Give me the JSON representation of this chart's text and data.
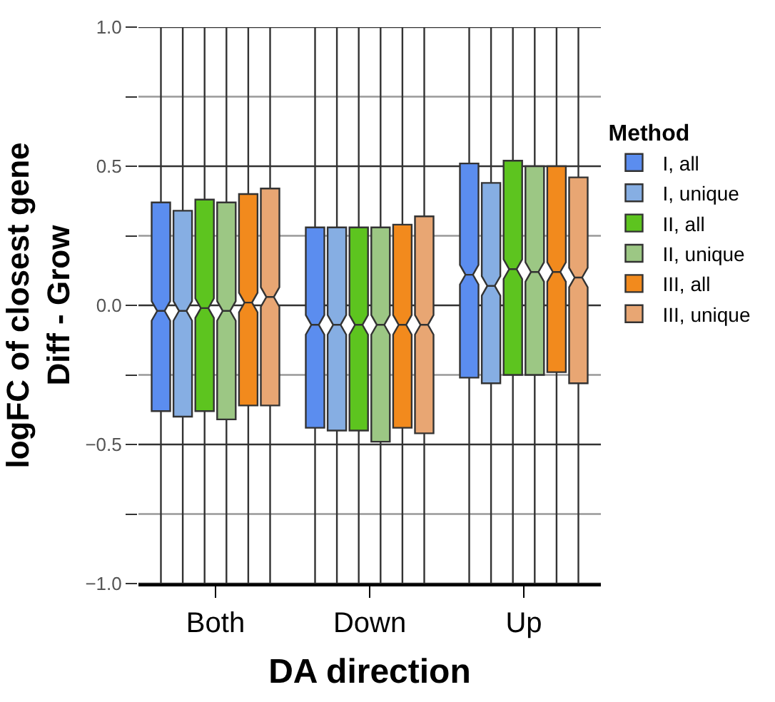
{
  "chart_data": {
    "type": "box",
    "xlabel": "DA direction",
    "ylabel": "logFC of closest gene\nDiff - Grow",
    "legend_title": "Method",
    "categories": [
      "Both",
      "Down",
      "Up"
    ],
    "series": [
      {
        "name": "I, all",
        "color": "#5b8def",
        "boxes": [
          {
            "low": -1.0,
            "q1": -0.38,
            "median": -0.02,
            "q3": 0.37,
            "high": 1.0
          },
          {
            "low": -1.0,
            "q1": -0.44,
            "median": -0.07,
            "q3": 0.28,
            "high": 1.0
          },
          {
            "low": -1.0,
            "q1": -0.26,
            "median": 0.11,
            "q3": 0.51,
            "high": 1.0
          }
        ]
      },
      {
        "name": "I, unique",
        "color": "#86aee3",
        "boxes": [
          {
            "low": -1.0,
            "q1": -0.4,
            "median": -0.02,
            "q3": 0.34,
            "high": 1.0
          },
          {
            "low": -1.0,
            "q1": -0.45,
            "median": -0.07,
            "q3": 0.28,
            "high": 1.0
          },
          {
            "low": -1.0,
            "q1": -0.28,
            "median": 0.07,
            "q3": 0.44,
            "high": 1.0
          }
        ]
      },
      {
        "name": "II, all",
        "color": "#5dc41f",
        "boxes": [
          {
            "low": -1.0,
            "q1": -0.38,
            "median": -0.01,
            "q3": 0.38,
            "high": 1.0
          },
          {
            "low": -1.0,
            "q1": -0.45,
            "median": -0.07,
            "q3": 0.28,
            "high": 1.0
          },
          {
            "low": -1.0,
            "q1": -0.25,
            "median": 0.13,
            "q3": 0.52,
            "high": 1.0
          }
        ]
      },
      {
        "name": "II, unique",
        "color": "#9cc784",
        "boxes": [
          {
            "low": -1.0,
            "q1": -0.41,
            "median": -0.02,
            "q3": 0.37,
            "high": 1.0
          },
          {
            "low": -1.0,
            "q1": -0.49,
            "median": -0.07,
            "q3": 0.28,
            "high": 1.0
          },
          {
            "low": -1.0,
            "q1": -0.25,
            "median": 0.12,
            "q3": 0.5,
            "high": 1.0
          }
        ]
      },
      {
        "name": "III, all",
        "color": "#f28a1d",
        "boxes": [
          {
            "low": -1.0,
            "q1": -0.36,
            "median": 0.01,
            "q3": 0.4,
            "high": 1.0
          },
          {
            "low": -1.0,
            "q1": -0.44,
            "median": -0.07,
            "q3": 0.29,
            "high": 1.0
          },
          {
            "low": -1.0,
            "q1": -0.24,
            "median": 0.12,
            "q3": 0.5,
            "high": 1.0
          }
        ]
      },
      {
        "name": "III, unique",
        "color": "#e8a673",
        "boxes": [
          {
            "low": -1.0,
            "q1": -0.36,
            "median": 0.03,
            "q3": 0.42,
            "high": 1.0
          },
          {
            "low": -1.0,
            "q1": -0.46,
            "median": -0.07,
            "q3": 0.32,
            "high": 1.0
          },
          {
            "low": -1.0,
            "q1": -0.28,
            "median": 0.1,
            "q3": 0.46,
            "high": 1.0
          }
        ]
      }
    ],
    "ylim": [
      -1.0,
      1.0
    ],
    "yticks": [
      {
        "value": -1.0,
        "label": "−1.0"
      },
      {
        "value": -0.75,
        "label": null
      },
      {
        "value": -0.5,
        "label": "−0.5"
      },
      {
        "value": -0.25,
        "label": null
      },
      {
        "value": 0.0,
        "label": "0.0"
      },
      {
        "value": 0.25,
        "label": null
      },
      {
        "value": 0.5,
        "label": "0.5"
      },
      {
        "value": 0.75,
        "label": null
      },
      {
        "value": 1.0,
        "label": "1.0"
      }
    ],
    "grid": "y",
    "legend": "right"
  }
}
